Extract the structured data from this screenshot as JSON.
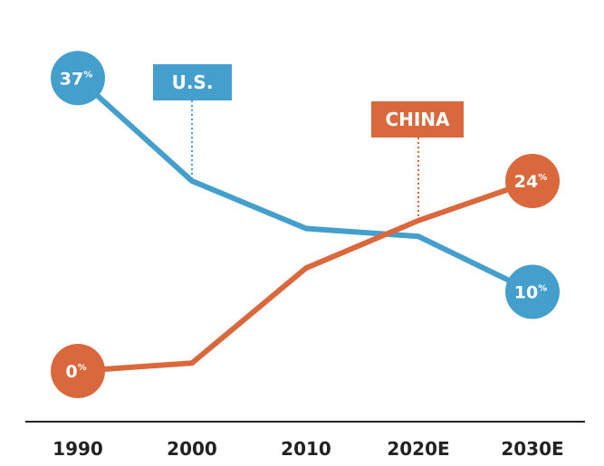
{
  "chart_data": {
    "type": "line",
    "title": "",
    "xlabel": "",
    "ylabel": "",
    "categories": [
      "1990",
      "2000",
      "2010",
      "2020E",
      "2030E"
    ],
    "ylim": [
      0,
      40
    ],
    "unit_suffix": "%",
    "series": [
      {
        "name": "U.S.",
        "color": "#459fcc",
        "values": [
          37,
          24,
          18,
          17,
          10
        ],
        "labeled_points": [
          0,
          4
        ]
      },
      {
        "name": "CHINA",
        "color": "#d9693c",
        "values": [
          0,
          1,
          13,
          19,
          24
        ],
        "labeled_points": [
          0,
          4
        ]
      }
    ],
    "annotations": [
      {
        "series": "U.S.",
        "label": "U.S.",
        "anchor_category": "2000"
      },
      {
        "series": "CHINA",
        "label": "CHINA",
        "anchor_category": "2020E"
      }
    ]
  }
}
